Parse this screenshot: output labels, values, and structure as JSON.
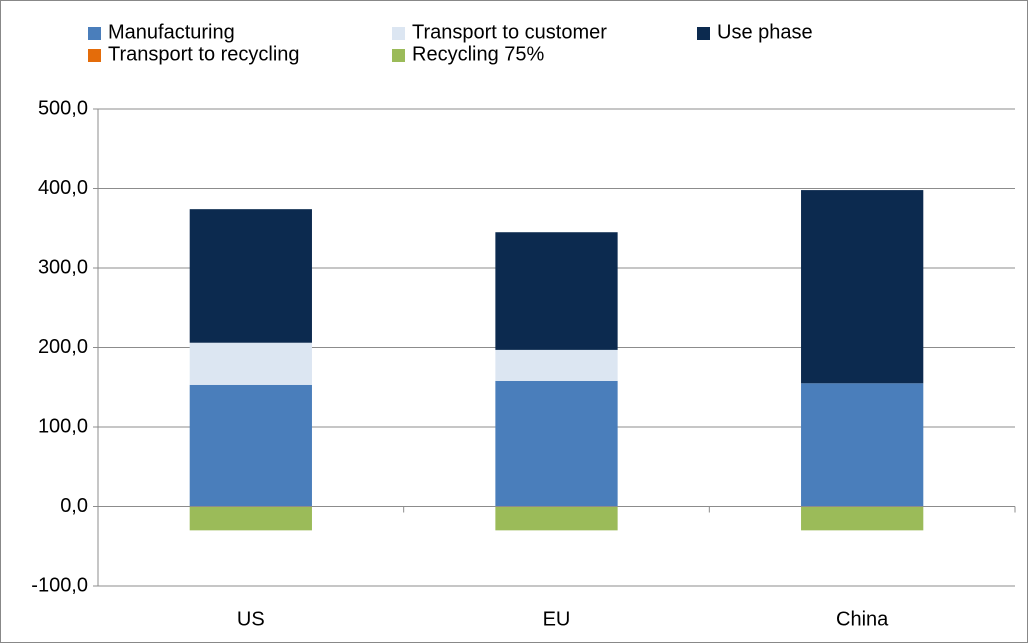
{
  "chart_data": {
    "type": "stacked_bar",
    "categories": [
      "US",
      "EU",
      "China"
    ],
    "series": [
      {
        "name": "Manufacturing",
        "color": "#4a7ebb",
        "values": [
          153,
          158,
          155
        ]
      },
      {
        "name": "Transport to customer",
        "color": "#dce6f2",
        "values": [
          53,
          39,
          0
        ]
      },
      {
        "name": "Use phase",
        "color": "#0c2a4f",
        "values": [
          168,
          148,
          243
        ]
      },
      {
        "name": "Transport to recycling",
        "color": "#e46c0a",
        "values": [
          0,
          0,
          0
        ]
      },
      {
        "name": "Recycling 75%",
        "color": "#9bbb59",
        "values": [
          -30,
          -30,
          -30
        ]
      }
    ],
    "ylim": [
      -100,
      500
    ],
    "yticks": [
      {
        "value": -100,
        "label": "-100,0"
      },
      {
        "value": 0,
        "label": "0,0"
      },
      {
        "value": 100,
        "label": "100,0"
      },
      {
        "value": 200,
        "label": "200,0"
      },
      {
        "value": 300,
        "label": "300,0"
      },
      {
        "value": 400,
        "label": "400,0"
      },
      {
        "value": 500,
        "label": "500,0"
      }
    ],
    "grid": true
  }
}
